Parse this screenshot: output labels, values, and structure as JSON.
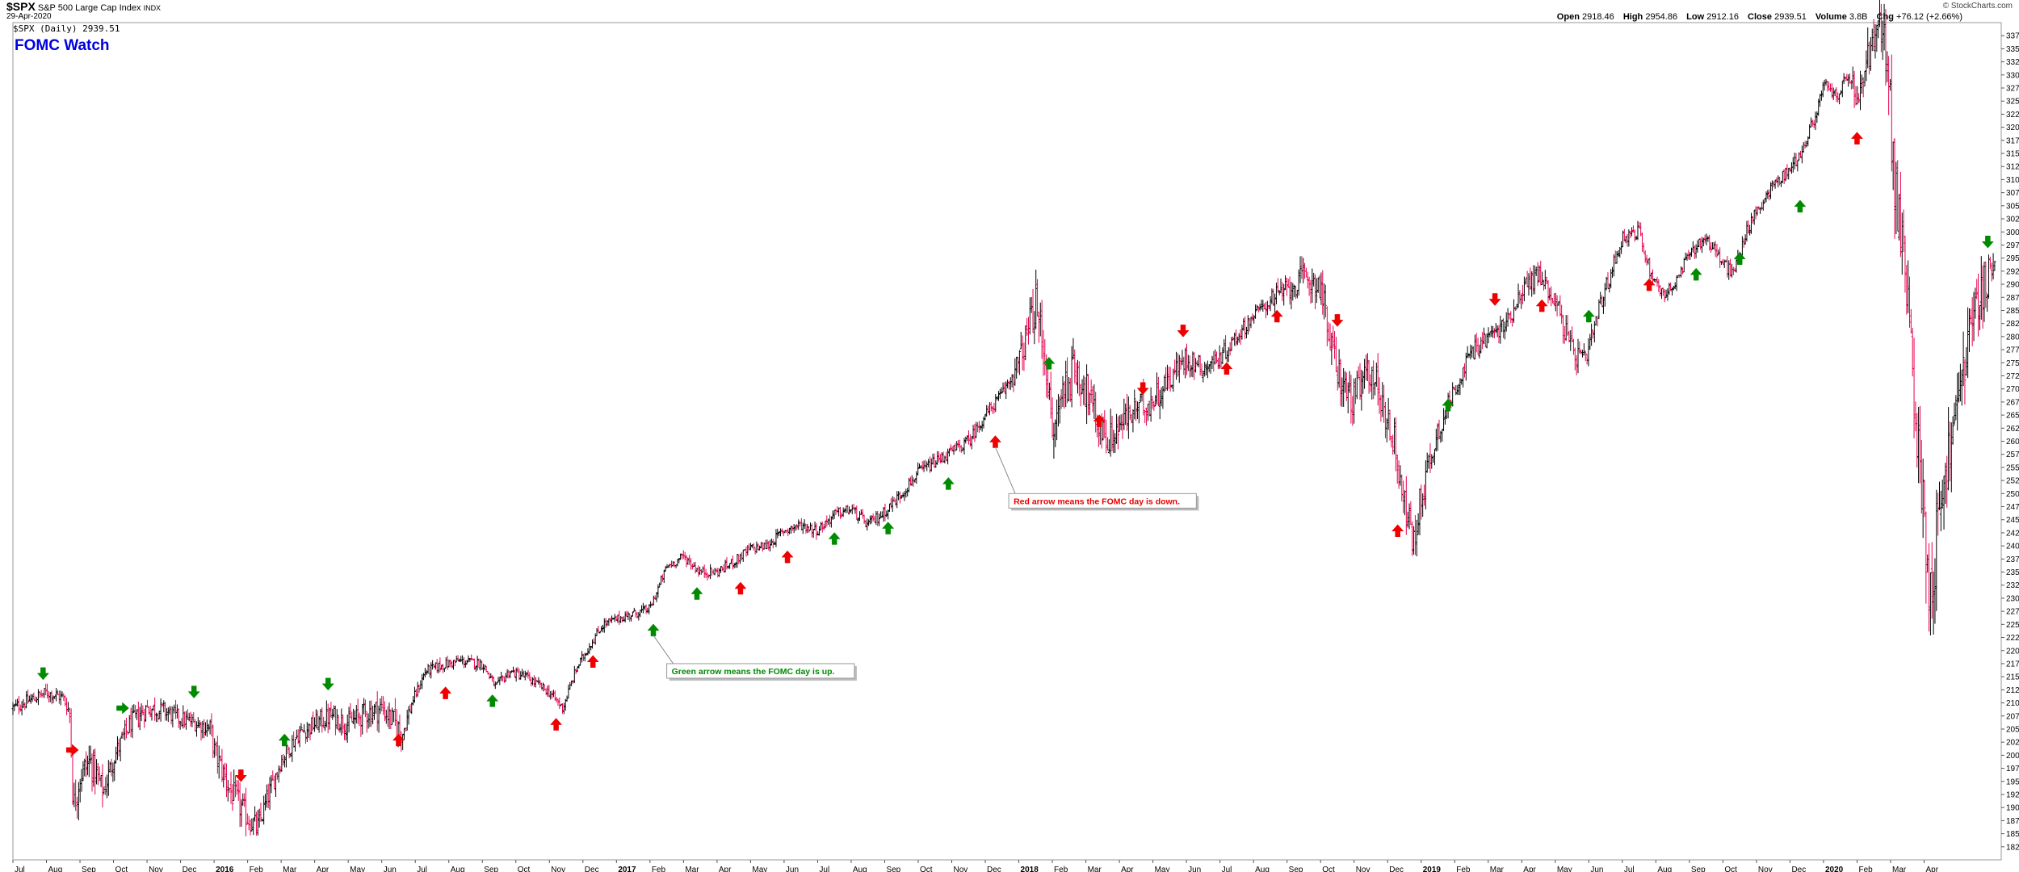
{
  "header": {
    "symbol": "$SPX",
    "name": "S&P 500 Large Cap Index",
    "exchange": "INDX",
    "date": "29-Apr-2020",
    "brand": "© StockCharts.com",
    "open_label": "Open",
    "open": "2918.46",
    "high_label": "High",
    "high": "2954.86",
    "low_label": "Low",
    "low": "2912.16",
    "close_label": "Close",
    "close": "2939.51",
    "volume_label": "Volume",
    "volume": "3.8B",
    "chg_label": "Chg",
    "chg": "+76.12 (+2.66%)"
  },
  "legend": "$SPX (Daily) 2939.51",
  "title": "FOMC Watch",
  "annotations": {
    "red": "Red arrow means the FOMC day is down.",
    "green": "Green arrow means the FOMC day is up."
  },
  "colors": {
    "up": "#000000",
    "down": "#e8004f",
    "red_arrow": "#ee0000",
    "green_arrow": "#008a00",
    "title": "#0000e0"
  },
  "chart_data": {
    "type": "ohlc",
    "title": "FOMC Watch",
    "series_name": "$SPX (Daily)",
    "ylim": [
      1800,
      3400
    ],
    "yticks_step": 25,
    "x_labels": [
      {
        "t": 0.0,
        "label": "Jul"
      },
      {
        "t": 1.0,
        "label": "Aug"
      },
      {
        "t": 2.0,
        "label": "Sep"
      },
      {
        "t": 3.0,
        "label": "Oct"
      },
      {
        "t": 4.0,
        "label": "Nov"
      },
      {
        "t": 5.0,
        "label": "Dec"
      },
      {
        "t": 6.0,
        "label": "2016"
      },
      {
        "t": 7.0,
        "label": "Feb"
      },
      {
        "t": 8.0,
        "label": "Mar"
      },
      {
        "t": 9.0,
        "label": "Apr"
      },
      {
        "t": 10.0,
        "label": "May"
      },
      {
        "t": 11.0,
        "label": "Jun"
      },
      {
        "t": 12.0,
        "label": "Jul"
      },
      {
        "t": 13.0,
        "label": "Aug"
      },
      {
        "t": 14.0,
        "label": "Sep"
      },
      {
        "t": 15.0,
        "label": "Oct"
      },
      {
        "t": 16.0,
        "label": "Nov"
      },
      {
        "t": 17.0,
        "label": "Dec"
      },
      {
        "t": 18.0,
        "label": "2017"
      },
      {
        "t": 19.0,
        "label": "Feb"
      },
      {
        "t": 20.0,
        "label": "Mar"
      },
      {
        "t": 21.0,
        "label": "Apr"
      },
      {
        "t": 22.0,
        "label": "May"
      },
      {
        "t": 23.0,
        "label": "Jun"
      },
      {
        "t": 24.0,
        "label": "Jul"
      },
      {
        "t": 25.0,
        "label": "Aug"
      },
      {
        "t": 26.0,
        "label": "Sep"
      },
      {
        "t": 27.0,
        "label": "Oct"
      },
      {
        "t": 28.0,
        "label": "Nov"
      },
      {
        "t": 29.0,
        "label": "Dec"
      },
      {
        "t": 30.0,
        "label": "2018"
      },
      {
        "t": 31.0,
        "label": "Feb"
      },
      {
        "t": 32.0,
        "label": "Mar"
      },
      {
        "t": 33.0,
        "label": "Apr"
      },
      {
        "t": 34.0,
        "label": "May"
      },
      {
        "t": 35.0,
        "label": "Jun"
      },
      {
        "t": 36.0,
        "label": "Jul"
      },
      {
        "t": 37.0,
        "label": "Aug"
      },
      {
        "t": 38.0,
        "label": "Sep"
      },
      {
        "t": 39.0,
        "label": "Oct"
      },
      {
        "t": 40.0,
        "label": "Nov"
      },
      {
        "t": 41.0,
        "label": "Dec"
      },
      {
        "t": 42.0,
        "label": "2019"
      },
      {
        "t": 43.0,
        "label": "Feb"
      },
      {
        "t": 44.0,
        "label": "Mar"
      },
      {
        "t": 45.0,
        "label": "Apr"
      },
      {
        "t": 46.0,
        "label": "May"
      },
      {
        "t": 47.0,
        "label": "Jun"
      },
      {
        "t": 48.0,
        "label": "Jul"
      },
      {
        "t": 49.0,
        "label": "Aug"
      },
      {
        "t": 50.0,
        "label": "Sep"
      },
      {
        "t": 51.0,
        "label": "Oct"
      },
      {
        "t": 52.0,
        "label": "Nov"
      },
      {
        "t": 53.0,
        "label": "Dec"
      },
      {
        "t": 54.0,
        "label": "2020"
      },
      {
        "t": 55.0,
        "label": "Feb"
      },
      {
        "t": 56.0,
        "label": "Mar"
      },
      {
        "t": 57.0,
        "label": "Apr"
      }
    ],
    "price_path": [
      [
        0.0,
        2090
      ],
      [
        0.5,
        2105
      ],
      [
        1.0,
        2120
      ],
      [
        1.5,
        2110
      ],
      [
        1.7,
        2080
      ],
      [
        1.8,
        1900
      ],
      [
        2.0,
        1960
      ],
      [
        2.3,
        1990
      ],
      [
        2.7,
        1930
      ],
      [
        3.0,
        1995
      ],
      [
        3.5,
        2060
      ],
      [
        4.0,
        2090
      ],
      [
        4.5,
        2085
      ],
      [
        5.0,
        2070
      ],
      [
        5.5,
        2060
      ],
      [
        5.9,
        2050
      ],
      [
        6.0,
        2010
      ],
      [
        6.5,
        1930
      ],
      [
        7.0,
        1880
      ],
      [
        7.3,
        1860
      ],
      [
        7.6,
        1920
      ],
      [
        8.0,
        1990
      ],
      [
        8.5,
        2040
      ],
      [
        9.0,
        2060
      ],
      [
        9.5,
        2075
      ],
      [
        10.0,
        2060
      ],
      [
        10.5,
        2080
      ],
      [
        11.0,
        2090
      ],
      [
        11.4,
        2060
      ],
      [
        11.6,
        2040
      ],
      [
        11.9,
        2100
      ],
      [
        12.3,
        2160
      ],
      [
        12.7,
        2170
      ],
      [
        13.3,
        2180
      ],
      [
        14.0,
        2175
      ],
      [
        14.4,
        2130
      ],
      [
        14.8,
        2160
      ],
      [
        15.3,
        2150
      ],
      [
        16.0,
        2120
      ],
      [
        16.4,
        2090
      ],
      [
        16.8,
        2165
      ],
      [
        17.2,
        2210
      ],
      [
        17.6,
        2250
      ],
      [
        18.0,
        2260
      ],
      [
        18.5,
        2270
      ],
      [
        19.0,
        2280
      ],
      [
        19.5,
        2360
      ],
      [
        20.0,
        2380
      ],
      [
        20.5,
        2350
      ],
      [
        21.0,
        2350
      ],
      [
        21.5,
        2370
      ],
      [
        22.0,
        2395
      ],
      [
        22.5,
        2400
      ],
      [
        23.0,
        2430
      ],
      [
        23.5,
        2440
      ],
      [
        24.0,
        2430
      ],
      [
        24.5,
        2460
      ],
      [
        25.0,
        2470
      ],
      [
        25.5,
        2440
      ],
      [
        26.0,
        2465
      ],
      [
        26.5,
        2500
      ],
      [
        27.0,
        2540
      ],
      [
        27.5,
        2560
      ],
      [
        28.0,
        2580
      ],
      [
        28.5,
        2600
      ],
      [
        29.0,
        2650
      ],
      [
        29.5,
        2690
      ],
      [
        30.0,
        2750
      ],
      [
        30.5,
        2860
      ],
      [
        30.8,
        2760
      ],
      [
        31.0,
        2600
      ],
      [
        31.3,
        2700
      ],
      [
        31.7,
        2740
      ],
      [
        32.0,
        2700
      ],
      [
        32.3,
        2640
      ],
      [
        32.7,
        2600
      ],
      [
        33.0,
        2630
      ],
      [
        33.5,
        2660
      ],
      [
        34.0,
        2680
      ],
      [
        34.5,
        2720
      ],
      [
        35.0,
        2760
      ],
      [
        35.5,
        2740
      ],
      [
        36.0,
        2760
      ],
      [
        36.5,
        2800
      ],
      [
        37.0,
        2840
      ],
      [
        37.5,
        2870
      ],
      [
        38.0,
        2890
      ],
      [
        38.5,
        2910
      ],
      [
        39.0,
        2900
      ],
      [
        39.3,
        2780
      ],
      [
        39.7,
        2700
      ],
      [
        40.0,
        2680
      ],
      [
        40.5,
        2740
      ],
      [
        40.9,
        2660
      ],
      [
        41.2,
        2600
      ],
      [
        41.5,
        2480
      ],
      [
        41.8,
        2400
      ],
      [
        42.0,
        2500
      ],
      [
        42.5,
        2620
      ],
      [
        43.0,
        2700
      ],
      [
        43.5,
        2770
      ],
      [
        44.0,
        2800
      ],
      [
        44.5,
        2820
      ],
      [
        45.0,
        2890
      ],
      [
        45.5,
        2920
      ],
      [
        46.0,
        2870
      ],
      [
        46.5,
        2770
      ],
      [
        46.9,
        2750
      ],
      [
        47.3,
        2850
      ],
      [
        47.8,
        2950
      ],
      [
        48.0,
        2990
      ],
      [
        48.5,
        3000
      ],
      [
        48.8,
        2930
      ],
      [
        49.2,
        2880
      ],
      [
        49.6,
        2900
      ],
      [
        50.0,
        2960
      ],
      [
        50.5,
        2990
      ],
      [
        51.0,
        2940
      ],
      [
        51.3,
        2920
      ],
      [
        51.7,
        3000
      ],
      [
        52.0,
        3040
      ],
      [
        52.5,
        3090
      ],
      [
        53.0,
        3120
      ],
      [
        53.4,
        3160
      ],
      [
        53.8,
        3230
      ],
      [
        54.0,
        3280
      ],
      [
        54.4,
        3260
      ],
      [
        54.8,
        3300
      ],
      [
        55.0,
        3240
      ],
      [
        55.3,
        3330
      ],
      [
        55.6,
        3380
      ],
      [
        55.9,
        3350
      ],
      [
        56.1,
        3100
      ],
      [
        56.4,
        2950
      ],
      [
        56.7,
        2700
      ],
      [
        57.0,
        2450
      ],
      [
        57.2,
        2300
      ],
      [
        57.5,
        2500
      ],
      [
        57.9,
        2630
      ],
      [
        58.3,
        2800
      ],
      [
        58.7,
        2880
      ],
      [
        59.0,
        2940
      ]
    ],
    "volatility_bands": [
      [
        0.0,
        15
      ],
      [
        1.6,
        15
      ],
      [
        1.8,
        40
      ],
      [
        3.2,
        25
      ],
      [
        5.5,
        18
      ],
      [
        6.5,
        35
      ],
      [
        8.0,
        20
      ],
      [
        11.5,
        30
      ],
      [
        12.0,
        12
      ],
      [
        18.0,
        10
      ],
      [
        29.5,
        14
      ],
      [
        30.6,
        50
      ],
      [
        33.5,
        35
      ],
      [
        37.0,
        15
      ],
      [
        39.3,
        40
      ],
      [
        42.0,
        40
      ],
      [
        43.0,
        18
      ],
      [
        46.5,
        28
      ],
      [
        48.0,
        15
      ],
      [
        54.5,
        14
      ],
      [
        56.0,
        70
      ],
      [
        57.5,
        80
      ],
      [
        59.0,
        45
      ]
    ],
    "fomc_arrows": [
      {
        "t": 0.9,
        "price": 2135,
        "dir": "down",
        "color": "green",
        "side": "above"
      },
      {
        "t": 2.1,
        "price": 2010,
        "dir": "right",
        "color": "red",
        "side": "left"
      },
      {
        "t": 3.6,
        "price": 2090,
        "dir": "right",
        "color": "green",
        "side": "left"
      },
      {
        "t": 5.4,
        "price": 2100,
        "dir": "down",
        "color": "green",
        "side": "above"
      },
      {
        "t": 6.8,
        "price": 1940,
        "dir": "down",
        "color": "red",
        "side": "above"
      },
      {
        "t": 8.1,
        "price": 2050,
        "dir": "up",
        "color": "green",
        "side": "below"
      },
      {
        "t": 9.4,
        "price": 2115,
        "dir": "down",
        "color": "green",
        "side": "above"
      },
      {
        "t": 11.5,
        "price": 2050,
        "dir": "up",
        "color": "red",
        "side": "below"
      },
      {
        "t": 12.9,
        "price": 2140,
        "dir": "up",
        "color": "red",
        "side": "below"
      },
      {
        "t": 14.3,
        "price": 2125,
        "dir": "up",
        "color": "green",
        "side": "below"
      },
      {
        "t": 16.2,
        "price": 2080,
        "dir": "up",
        "color": "red",
        "side": "below"
      },
      {
        "t": 17.3,
        "price": 2200,
        "dir": "up",
        "color": "red",
        "side": "below"
      },
      {
        "t": 19.1,
        "price": 2260,
        "dir": "up",
        "color": "green",
        "side": "below"
      },
      {
        "t": 20.4,
        "price": 2330,
        "dir": "up",
        "color": "green",
        "side": "below"
      },
      {
        "t": 21.7,
        "price": 2340,
        "dir": "up",
        "color": "red",
        "side": "below"
      },
      {
        "t": 23.1,
        "price": 2400,
        "dir": "up",
        "color": "red",
        "side": "below"
      },
      {
        "t": 24.5,
        "price": 2435,
        "dir": "up",
        "color": "green",
        "side": "below"
      },
      {
        "t": 26.1,
        "price": 2455,
        "dir": "up",
        "color": "green",
        "side": "below"
      },
      {
        "t": 27.9,
        "price": 2540,
        "dir": "up",
        "color": "green",
        "side": "below"
      },
      {
        "t": 29.3,
        "price": 2620,
        "dir": "up",
        "color": "red",
        "side": "below"
      },
      {
        "t": 30.9,
        "price": 2770,
        "dir": "up",
        "color": "green",
        "side": "below"
      },
      {
        "t": 32.4,
        "price": 2660,
        "dir": "up",
        "color": "red",
        "side": "below"
      },
      {
        "t": 33.7,
        "price": 2680,
        "dir": "down",
        "color": "red",
        "side": "above"
      },
      {
        "t": 34.9,
        "price": 2790,
        "dir": "down",
        "color": "red",
        "side": "above"
      },
      {
        "t": 36.2,
        "price": 2760,
        "dir": "up",
        "color": "red",
        "side": "below"
      },
      {
        "t": 37.7,
        "price": 2860,
        "dir": "up",
        "color": "red",
        "side": "below"
      },
      {
        "t": 39.5,
        "price": 2810,
        "dir": "down",
        "color": "red",
        "side": "above"
      },
      {
        "t": 41.3,
        "price": 2450,
        "dir": "up",
        "color": "red",
        "side": "below"
      },
      {
        "t": 42.8,
        "price": 2690,
        "dir": "up",
        "color": "green",
        "side": "below"
      },
      {
        "t": 44.2,
        "price": 2850,
        "dir": "down",
        "color": "red",
        "side": "above"
      },
      {
        "t": 45.6,
        "price": 2880,
        "dir": "up",
        "color": "red",
        "side": "below"
      },
      {
        "t": 47.0,
        "price": 2860,
        "dir": "up",
        "color": "green",
        "side": "below"
      },
      {
        "t": 48.8,
        "price": 2920,
        "dir": "up",
        "color": "red",
        "side": "below"
      },
      {
        "t": 50.2,
        "price": 2940,
        "dir": "up",
        "color": "green",
        "side": "below"
      },
      {
        "t": 51.5,
        "price": 2970,
        "dir": "up",
        "color": "green",
        "side": "below"
      },
      {
        "t": 53.3,
        "price": 3070,
        "dir": "up",
        "color": "green",
        "side": "below"
      },
      {
        "t": 55.0,
        "price": 3200,
        "dir": "up",
        "color": "red",
        "side": "below"
      },
      {
        "t": 58.9,
        "price": 2960,
        "dir": "down",
        "color": "green",
        "side": "above"
      }
    ],
    "callouts": [
      {
        "key": "red",
        "from_t": 29.3,
        "from_price": 2620,
        "box_t": 29.7,
        "box_price": 2500,
        "color": "red"
      },
      {
        "key": "green",
        "from_t": 19.1,
        "from_price": 2260,
        "box_t": 19.5,
        "box_price": 2175,
        "color": "green"
      }
    ],
    "t_max": 59.3
  }
}
